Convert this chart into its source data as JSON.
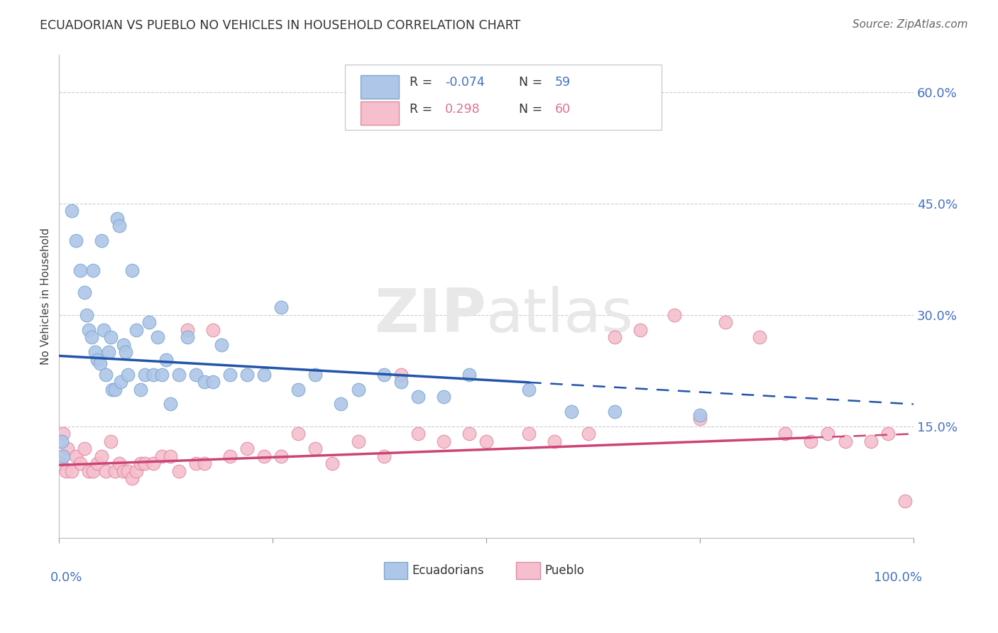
{
  "title": "ECUADORIAN VS PUEBLO NO VEHICLES IN HOUSEHOLD CORRELATION CHART",
  "source": "Source: ZipAtlas.com",
  "ylabel": "No Vehicles in Household",
  "watermark": "ZIPatlas",
  "series": [
    {
      "name": "Ecuadorians",
      "color": "#aec6e8",
      "edge_color": "#7aa8d0",
      "R": -0.074,
      "N": 59,
      "x": [
        0.3,
        0.5,
        1.5,
        2.0,
        2.5,
        3.0,
        3.2,
        3.5,
        3.8,
        4.0,
        4.2,
        4.5,
        4.8,
        5.0,
        5.2,
        5.5,
        5.8,
        6.0,
        6.2,
        6.5,
        6.8,
        7.0,
        7.2,
        7.5,
        7.8,
        8.0,
        8.5,
        9.0,
        9.5,
        10.0,
        10.5,
        11.0,
        11.5,
        12.0,
        12.5,
        13.0,
        14.0,
        15.0,
        16.0,
        17.0,
        18.0,
        19.0,
        20.0,
        22.0,
        24.0,
        26.0,
        28.0,
        30.0,
        33.0,
        35.0,
        38.0,
        40.0,
        42.0,
        45.0,
        48.0,
        55.0,
        60.0,
        65.0,
        75.0
      ],
      "y": [
        13.0,
        11.0,
        44.0,
        40.0,
        36.0,
        33.0,
        30.0,
        28.0,
        27.0,
        36.0,
        25.0,
        24.0,
        23.5,
        40.0,
        28.0,
        22.0,
        25.0,
        27.0,
        20.0,
        20.0,
        43.0,
        42.0,
        21.0,
        26.0,
        25.0,
        22.0,
        36.0,
        28.0,
        20.0,
        22.0,
        29.0,
        22.0,
        27.0,
        22.0,
        24.0,
        18.0,
        22.0,
        27.0,
        22.0,
        21.0,
        21.0,
        26.0,
        22.0,
        22.0,
        22.0,
        31.0,
        20.0,
        22.0,
        18.0,
        20.0,
        22.0,
        21.0,
        19.0,
        19.0,
        22.0,
        20.0,
        17.0,
        17.0,
        16.5
      ]
    },
    {
      "name": "Pueblo",
      "color": "#f5bfce",
      "edge_color": "#e08aa0",
      "R": 0.298,
      "N": 60,
      "x": [
        0.2,
        0.5,
        0.8,
        1.0,
        1.5,
        2.0,
        2.5,
        3.0,
        3.5,
        4.0,
        4.5,
        5.0,
        5.5,
        6.0,
        6.5,
        7.0,
        7.5,
        8.0,
        8.5,
        9.0,
        9.5,
        10.0,
        11.0,
        12.0,
        13.0,
        14.0,
        15.0,
        16.0,
        17.0,
        18.0,
        20.0,
        22.0,
        24.0,
        26.0,
        28.0,
        30.0,
        32.0,
        35.0,
        38.0,
        40.0,
        42.0,
        45.0,
        48.0,
        50.0,
        55.0,
        58.0,
        62.0,
        65.0,
        68.0,
        72.0,
        75.0,
        78.0,
        82.0,
        85.0,
        88.0,
        90.0,
        92.0,
        95.0,
        97.0,
        99.0
      ],
      "y": [
        10.0,
        14.0,
        9.0,
        12.0,
        9.0,
        11.0,
        10.0,
        12.0,
        9.0,
        9.0,
        10.0,
        11.0,
        9.0,
        13.0,
        9.0,
        10.0,
        9.0,
        9.0,
        8.0,
        9.0,
        10.0,
        10.0,
        10.0,
        11.0,
        11.0,
        9.0,
        28.0,
        10.0,
        10.0,
        28.0,
        11.0,
        12.0,
        11.0,
        11.0,
        14.0,
        12.0,
        10.0,
        13.0,
        11.0,
        22.0,
        14.0,
        13.0,
        14.0,
        13.0,
        14.0,
        13.0,
        14.0,
        27.0,
        28.0,
        30.0,
        16.0,
        29.0,
        27.0,
        14.0,
        13.0,
        14.0,
        13.0,
        13.0,
        14.0,
        5.0
      ]
    }
  ],
  "xlim": [
    0,
    100
  ],
  "ylim": [
    0,
    65
  ],
  "yticks": [
    0,
    15,
    30,
    45,
    60
  ],
  "ytick_labels": [
    "",
    "15.0%",
    "30.0%",
    "45.0%",
    "60.0%"
  ],
  "xtick_labels": [
    "0.0%",
    "100.0%"
  ],
  "grid_color": "#cccccc",
  "title_color": "#333333",
  "blue_R_color": "#4472c4",
  "pink_R_color": "#e07090",
  "trend_blue_slope": -0.065,
  "trend_blue_intercept": 24.5,
  "trend_blue_solid_end": 55,
  "trend_pink_slope": 0.042,
  "trend_pink_intercept": 9.8,
  "trend_pink_solid_end": 88
}
